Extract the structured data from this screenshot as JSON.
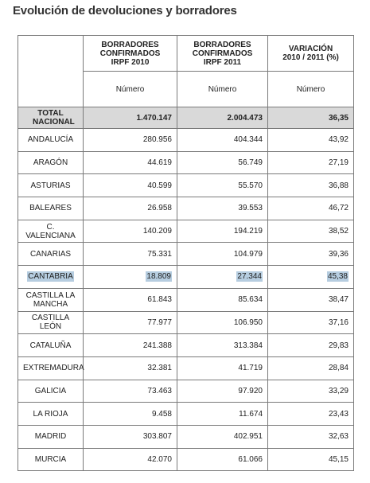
{
  "title": "Evolución de devoluciones y borradores",
  "headers": {
    "col1": "BORRADORES CONFIRMADOS IRPF 2010",
    "col2": "BORRADORES CONFIRMADOS IRPF 2011",
    "col3": "VARIACIÓN 2010 / 2011 (%)"
  },
  "subheaders": {
    "col1": "Número",
    "col2": "Número",
    "col3": "Número"
  },
  "total": {
    "label": "TOTAL NACIONAL",
    "v2010": "1.470.147",
    "v2011": "2.004.473",
    "var": "36,35"
  },
  "rows": [
    {
      "region": "ANDALUCÍA",
      "v2010": "280.956",
      "v2011": "404.344",
      "var": "43,92"
    },
    {
      "region": "ARAGÓN",
      "v2010": "44.619",
      "v2011": "56.749",
      "var": "27,19"
    },
    {
      "region": "ASTURIAS",
      "v2010": "40.599",
      "v2011": "55.570",
      "var": "36,88"
    },
    {
      "region": "BALEARES",
      "v2010": "26.958",
      "v2011": "39.553",
      "var": "46,72"
    },
    {
      "region": "C. VALENCIANA",
      "v2010": "140.209",
      "v2011": "194.219",
      "var": "38,52"
    },
    {
      "region": "CANARIAS",
      "v2010": "75.331",
      "v2011": "104.979",
      "var": "39,36"
    },
    {
      "region": "CANTABRIA",
      "v2010": "18.809",
      "v2011": "27.344",
      "var": "45,38",
      "highlighted": true
    },
    {
      "region": "CASTILLA LA MANCHA",
      "v2010": "61.843",
      "v2011": "85.634",
      "var": "38,47"
    },
    {
      "region": "CASTILLA LEÓN",
      "v2010": "77.977",
      "v2011": "106.950",
      "var": "37,16"
    },
    {
      "region": "CATALUÑA",
      "v2010": "241.388",
      "v2011": "313.384",
      "var": "29,83"
    },
    {
      "region": "EXTREMADURA",
      "v2010": "32.381",
      "v2011": "41.719",
      "var": "28,84"
    },
    {
      "region": "GALICIA",
      "v2010": "73.463",
      "v2011": "97.920",
      "var": "33,29"
    },
    {
      "region": "LA RIOJA",
      "v2010": "9.458",
      "v2011": "11.674",
      "var": "23,43"
    },
    {
      "region": "MADRID",
      "v2010": "303.807",
      "v2011": "402.951",
      "var": "32,63"
    },
    {
      "region": "MURCIA",
      "v2010": "42.070",
      "v2011": "61.066",
      "var": "45,15"
    }
  ],
  "colors": {
    "total_bg": "#d9d9d9",
    "highlight_bg": "#b6cde0",
    "border": "#7a7a7a"
  }
}
